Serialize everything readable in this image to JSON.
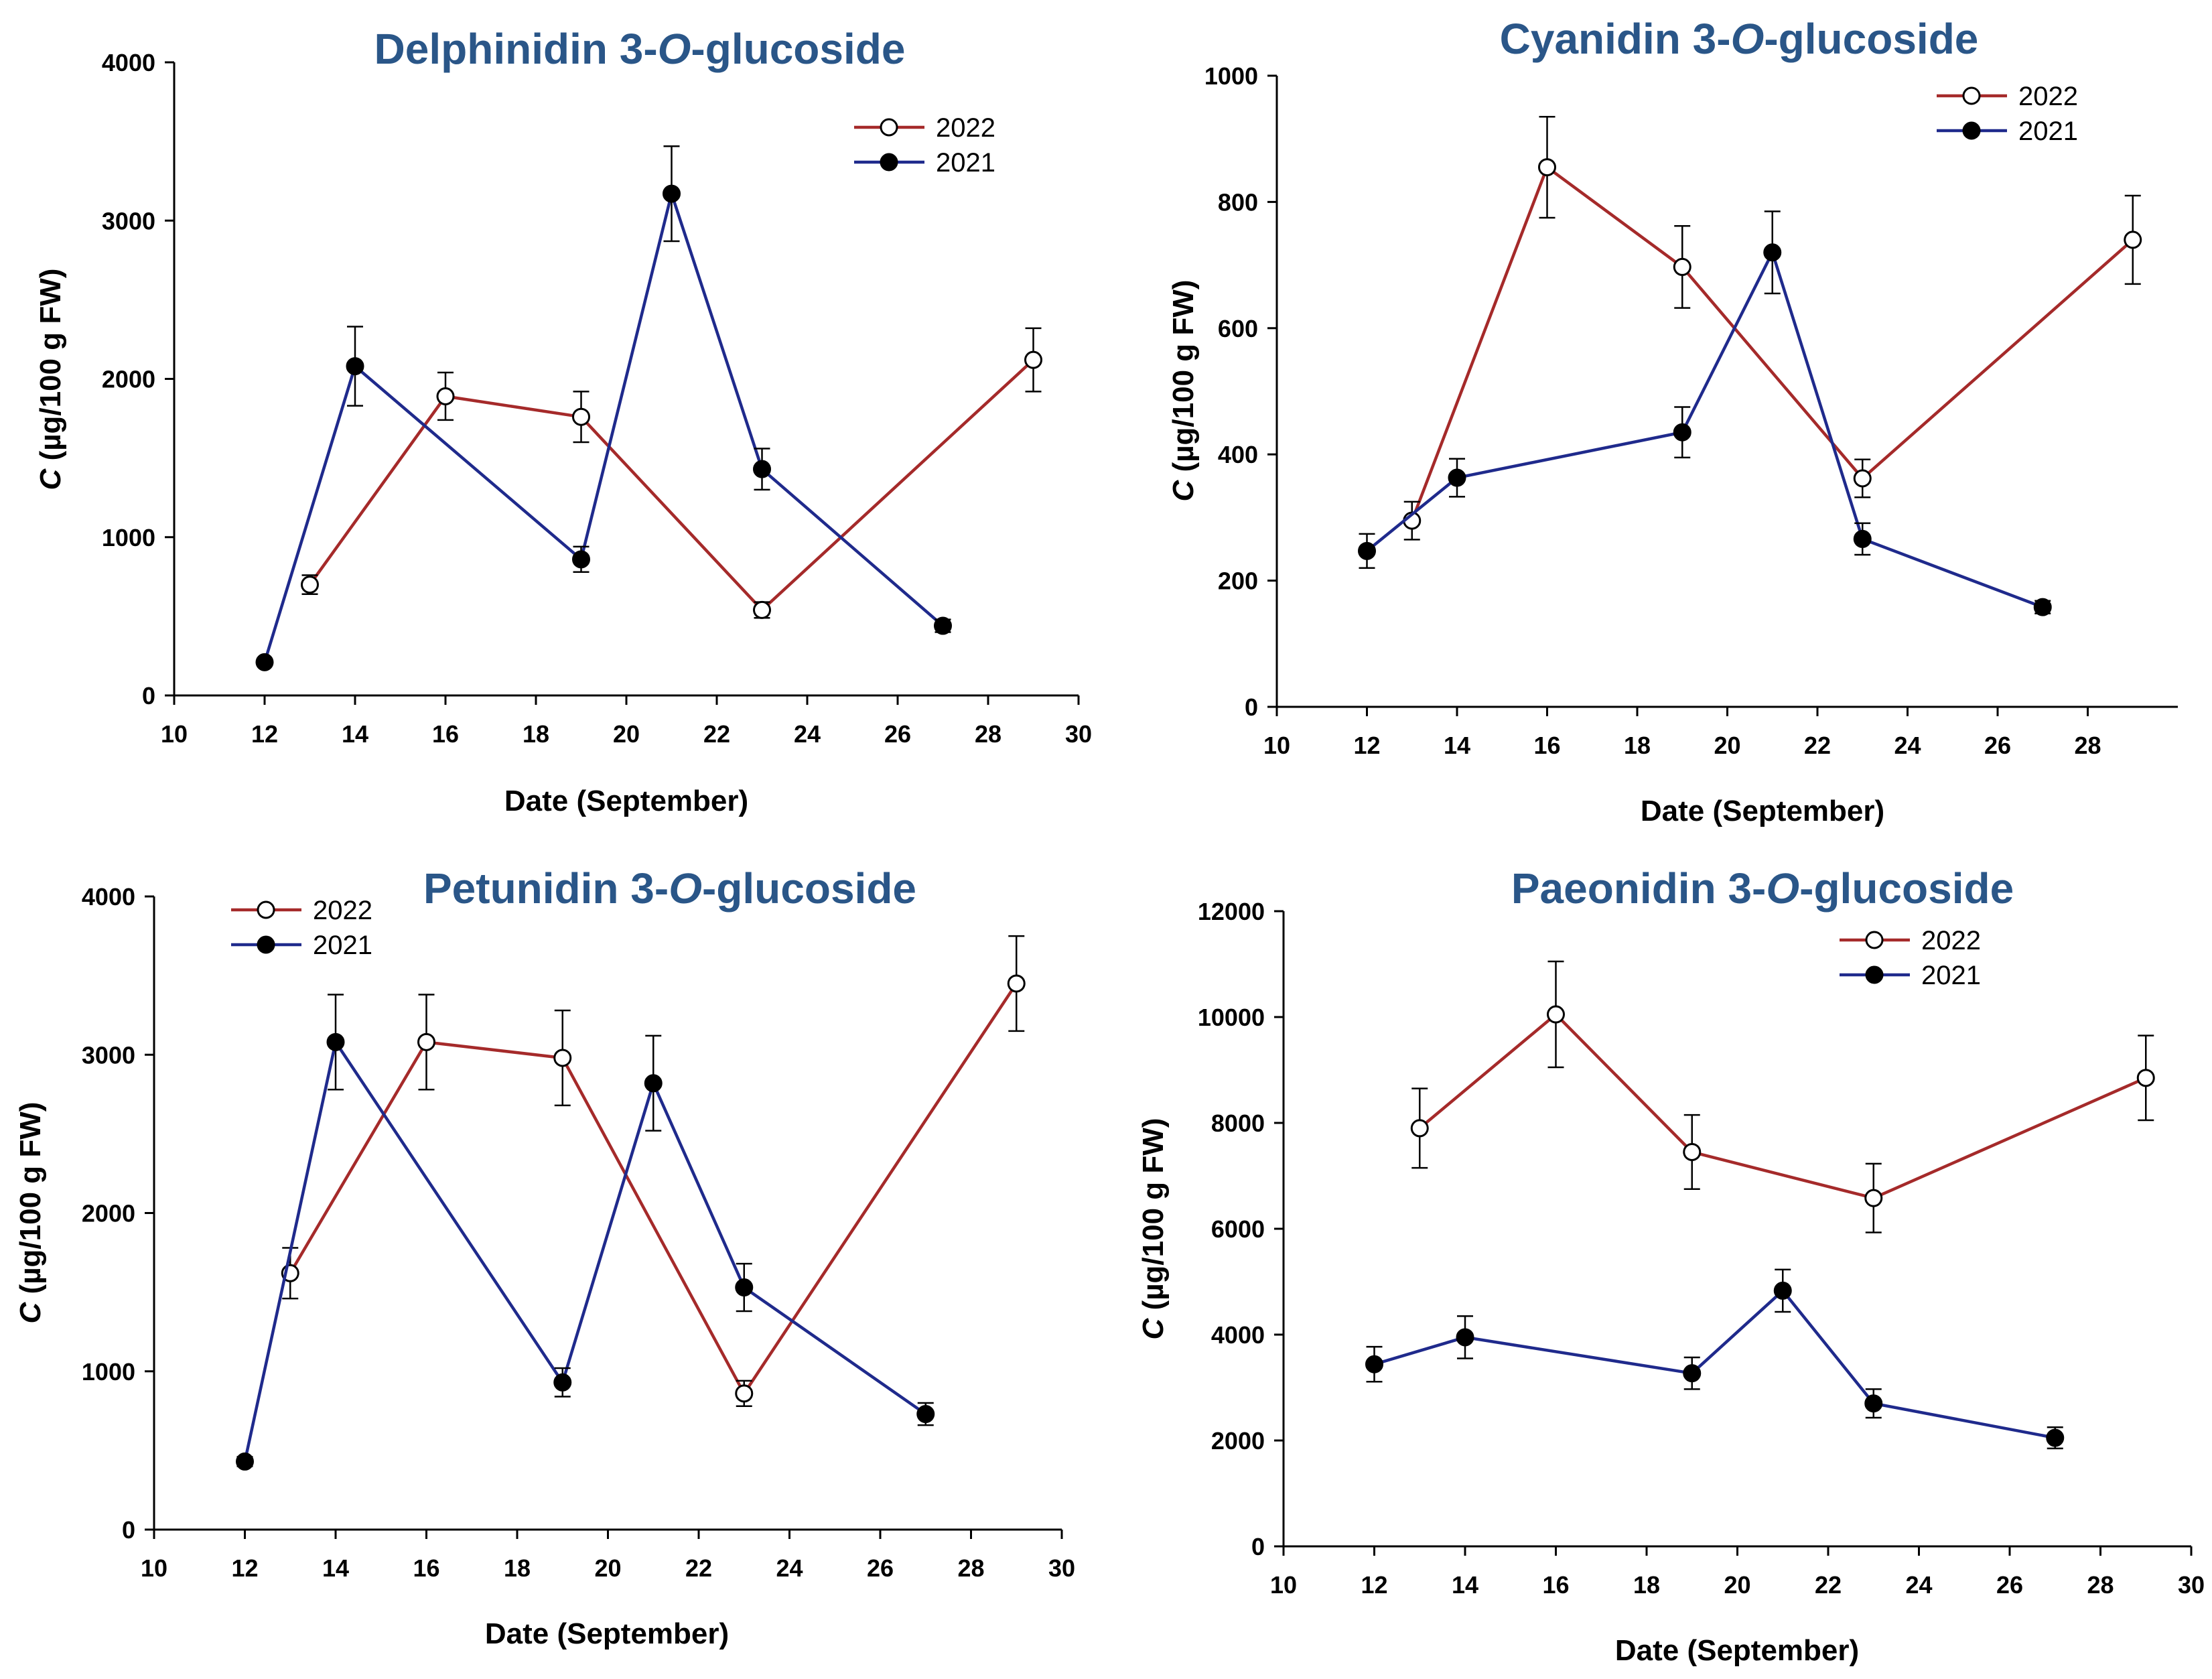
{
  "colors": {
    "s2022": "#a52a2a",
    "s2021": "#1f2a8c",
    "title": "#2a5688"
  },
  "chart_data": [
    {
      "type": "line",
      "title_prefix": "Delphinidin 3-",
      "title_italic": "O",
      "title_suffix": "-glucoside",
      "xlabel": "Date (September)",
      "ylabel_italic": "C",
      "ylabel_rest": " (µg/100 g FW)",
      "xlim": [
        10,
        30
      ],
      "ylim": [
        0,
        4000
      ],
      "xticks": [
        "10",
        "12",
        "14",
        "16",
        "18",
        "20",
        "22",
        "24",
        "26",
        "28",
        "30"
      ],
      "yticks": [
        "0",
        "1000",
        "2000",
        "3000",
        "4000"
      ],
      "legend_position": "top-right",
      "series": [
        {
          "name": "2022",
          "marker": "open",
          "x": [
            13,
            16,
            19,
            23,
            29
          ],
          "y": [
            700,
            1890,
            1760,
            540,
            2120
          ],
          "err": [
            60,
            150,
            160,
            50,
            200
          ]
        },
        {
          "name": "2021",
          "marker": "filled",
          "x": [
            12,
            14,
            19,
            21,
            23,
            27
          ],
          "y": [
            210,
            2080,
            860,
            3170,
            1430,
            440
          ],
          "err": [
            20,
            250,
            80,
            300,
            130,
            40
          ]
        }
      ]
    },
    {
      "type": "line",
      "title_prefix": "Cyanidin 3-",
      "title_italic": "O",
      "title_suffix": "-glucoside",
      "xlabel": "Date (September)",
      "ylabel_italic": "C",
      "ylabel_rest": " (µg/100 g FW)",
      "xlim": [
        10,
        30
      ],
      "ylim": [
        0,
        1000
      ],
      "xticks": [
        "10",
        "12",
        "14",
        "16",
        "18",
        "20",
        "22",
        "24",
        "26",
        "28"
      ],
      "yticks": [
        "0",
        "200",
        "400",
        "600",
        "800",
        "1000"
      ],
      "legend_position": "top-right",
      "series": [
        {
          "name": "2022",
          "marker": "open",
          "x": [
            13,
            16,
            19,
            23,
            29
          ],
          "y": [
            295,
            855,
            697,
            362,
            740
          ],
          "err": [
            30,
            80,
            65,
            30,
            70
          ]
        },
        {
          "name": "2021",
          "marker": "filled",
          "x": [
            12,
            14,
            19,
            21,
            23,
            27
          ],
          "y": [
            247,
            363,
            435,
            720,
            266,
            158
          ],
          "err": [
            27,
            30,
            40,
            65,
            25,
            10
          ]
        }
      ]
    },
    {
      "type": "line",
      "title_prefix": "Petunidin 3-",
      "title_italic": "O",
      "title_suffix": "-glucoside",
      "xlabel": "Date (September)",
      "ylabel_italic": "C",
      "ylabel_rest": " (µg/100 g FW)",
      "xlim": [
        10,
        30
      ],
      "ylim": [
        0,
        4000
      ],
      "xticks": [
        "10",
        "12",
        "14",
        "16",
        "18",
        "20",
        "22",
        "24",
        "26",
        "28",
        "30"
      ],
      "yticks": [
        "0",
        "1000",
        "2000",
        "3000",
        "4000"
      ],
      "legend_position": "top-left",
      "series": [
        {
          "name": "2022",
          "marker": "open",
          "x": [
            13,
            16,
            19,
            23,
            29
          ],
          "y": [
            1620,
            3080,
            2980,
            860,
            3450
          ],
          "err": [
            160,
            300,
            300,
            80,
            300
          ]
        },
        {
          "name": "2021",
          "marker": "filled",
          "x": [
            12,
            14,
            19,
            21,
            23,
            27
          ],
          "y": [
            430,
            3080,
            930,
            2820,
            1530,
            730
          ],
          "err": [
            30,
            300,
            90,
            300,
            150,
            70
          ]
        }
      ]
    },
    {
      "type": "line",
      "title_prefix": "Paeonidin 3-",
      "title_italic": "O",
      "title_suffix": "-glucoside",
      "xlabel": "Date (September)",
      "ylabel_italic": "C",
      "ylabel_rest": " (µg/100 g FW)",
      "xlim": [
        10,
        30
      ],
      "ylim": [
        0,
        12000
      ],
      "xticks": [
        "10",
        "12",
        "14",
        "16",
        "18",
        "20",
        "22",
        "24",
        "26",
        "28",
        "30"
      ],
      "yticks": [
        "0",
        "2000",
        "4000",
        "6000",
        "8000",
        "10000",
        "12000"
      ],
      "legend_position": "top-right",
      "series": [
        {
          "name": "2022",
          "marker": "open",
          "x": [
            13,
            16,
            19,
            23,
            29
          ],
          "y": [
            7900,
            10050,
            7450,
            6580,
            8850
          ],
          "err": [
            750,
            1000,
            700,
            650,
            800
          ]
        },
        {
          "name": "2021",
          "marker": "filled",
          "x": [
            12,
            14,
            19,
            21,
            23,
            27
          ],
          "y": [
            3440,
            3950,
            3270,
            4830,
            2700,
            2050
          ],
          "err": [
            330,
            400,
            300,
            400,
            270,
            200
          ]
        }
      ]
    }
  ]
}
